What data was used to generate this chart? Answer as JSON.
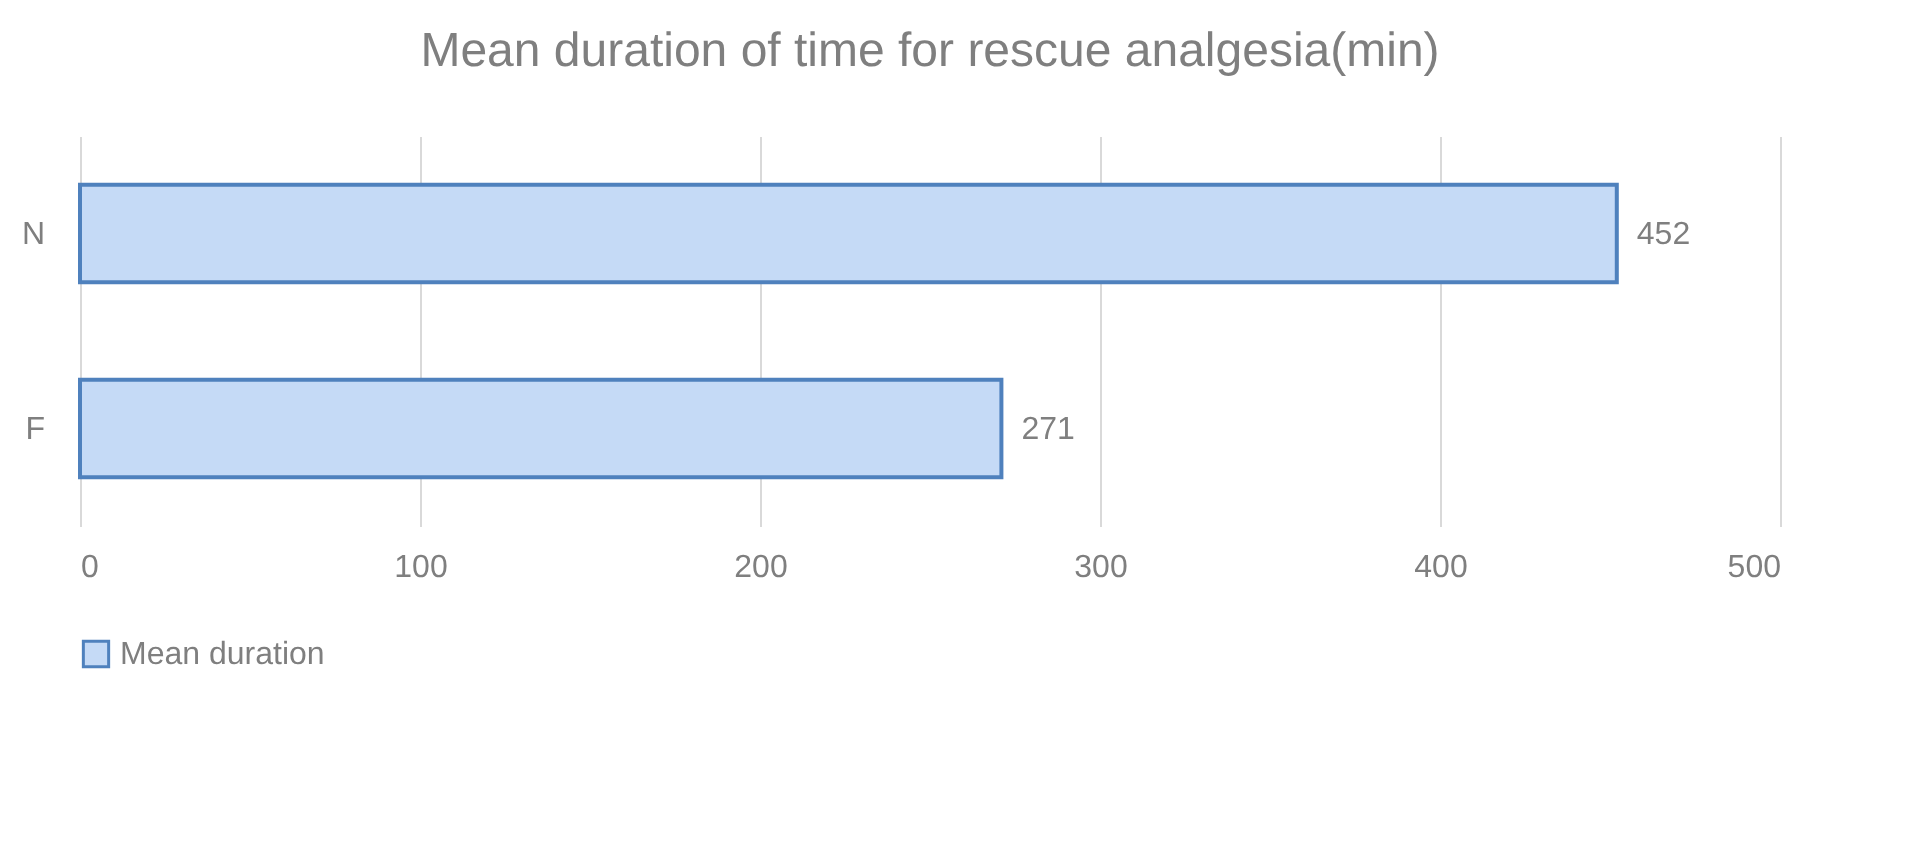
{
  "chart_data": {
    "type": "bar",
    "orientation": "horizontal",
    "title": "Mean duration of time for rescue analgesia(min)",
    "categories": [
      "N",
      "F"
    ],
    "series": [
      {
        "name": "Mean duration",
        "color": "#c5daf6",
        "values": [
          452,
          271
        ]
      }
    ],
    "xlim": [
      0,
      500
    ],
    "xticks": [
      0,
      100,
      200,
      300,
      400,
      500
    ],
    "grid": "x",
    "legend": "bottom",
    "data_labels": true
  }
}
